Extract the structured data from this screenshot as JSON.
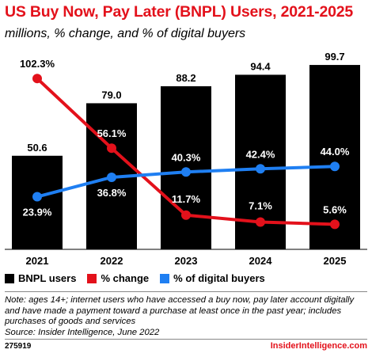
{
  "title": "US Buy Now, Pay Later (BNPL) Users, 2021-2025",
  "subtitle": "millions, % change, and % of digital buyers",
  "chart_data": {
    "type": "bar",
    "categories": [
      "2021",
      "2022",
      "2023",
      "2024",
      "2025"
    ],
    "series": [
      {
        "name": "BNPL users",
        "kind": "bar",
        "color": "#000000",
        "values": [
          50.6,
          79.0,
          88.2,
          94.4,
          99.7
        ],
        "labels": [
          "50.6",
          "79.0",
          "88.2",
          "94.4",
          "99.7"
        ]
      },
      {
        "name": "% change",
        "kind": "line",
        "color": "#e3111b",
        "values": [
          102.3,
          56.1,
          11.7,
          7.1,
          5.6
        ],
        "labels": [
          "102.3%",
          "56.1%",
          "11.7%",
          "7.1%",
          "5.6%"
        ]
      },
      {
        "name": "% of digital buyers",
        "kind": "line",
        "color": "#1f7ff2",
        "values": [
          23.9,
          36.8,
          40.3,
          42.4,
          44.0
        ],
        "labels": [
          "23.9%",
          "36.8%",
          "40.3%",
          "42.4%",
          "44.0%"
        ]
      }
    ],
    "bar_ylim": [
      0,
      110
    ],
    "pct_ylim": [
      -11,
      115
    ],
    "grid": false,
    "legend_position": "bottom"
  },
  "legend": [
    {
      "label": "BNPL users",
      "color": "#000000"
    },
    {
      "label": "% change",
      "color": "#e3111b"
    },
    {
      "label": "% of digital buyers",
      "color": "#1f7ff2"
    }
  ],
  "note": "Note: ages 14+; internet users who have accessed a buy now, pay later account digitally and have made a payment toward a purchase at least once in the past year; includes purchases of goods and services",
  "source": "Source: Insider Intelligence, June 2022",
  "footer": {
    "id": "275919",
    "brand": "InsiderIntelligence.com"
  }
}
